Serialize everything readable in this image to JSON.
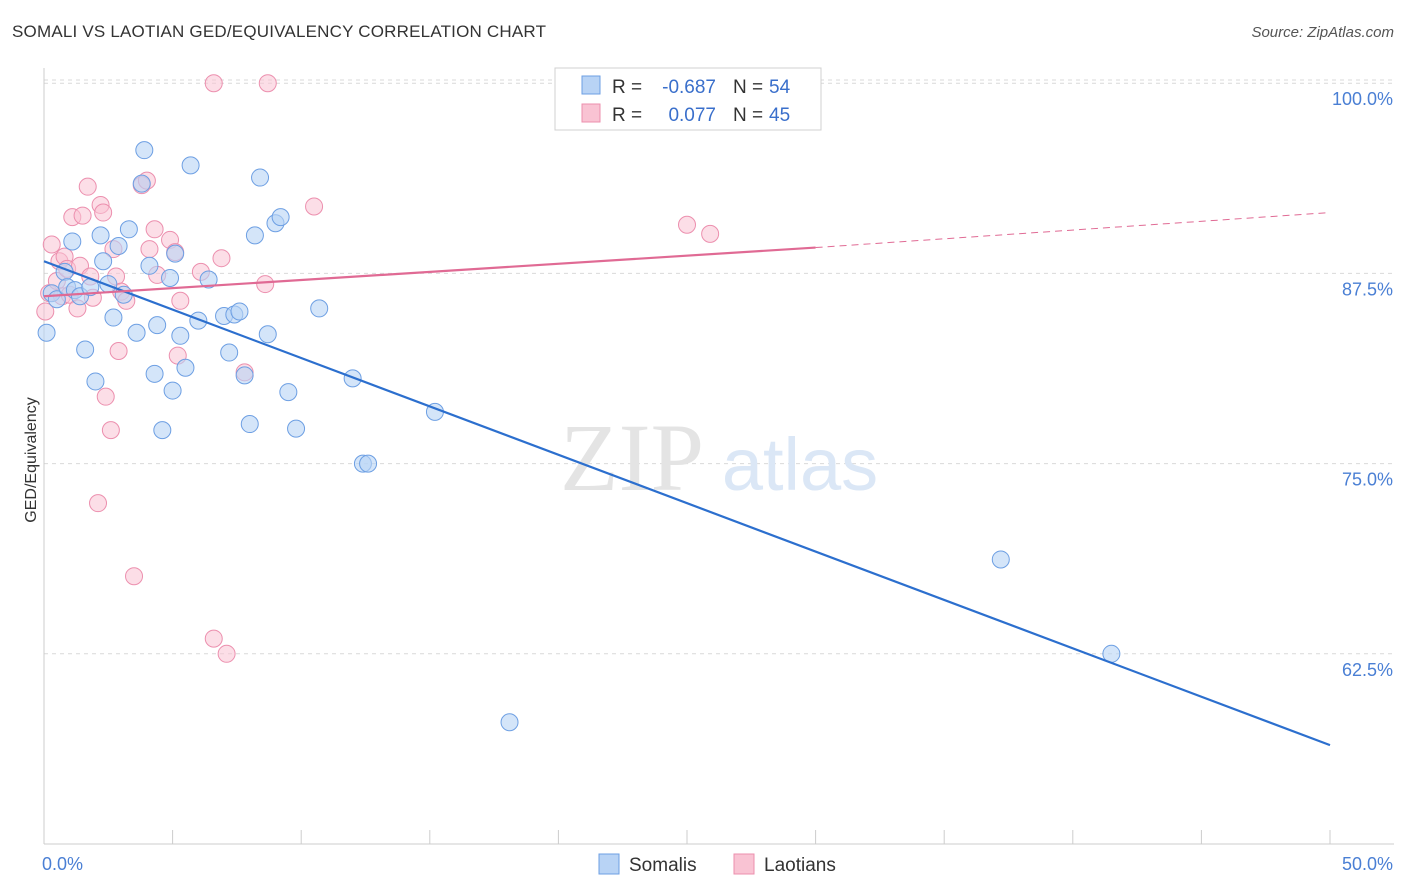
{
  "title": "SOMALI VS LAOTIAN GED/EQUIVALENCY CORRELATION CHART",
  "source": "Source: ZipAtlas.com",
  "watermark": {
    "zip": "ZIP",
    "atlas": "atlas"
  },
  "legend_top": [
    {
      "r_label": "R =",
      "r_value": "-0.687",
      "n_label": "N =",
      "n_value": "54"
    },
    {
      "r_label": "R =",
      "r_value": "0.077",
      "n_label": "N =",
      "n_value": "45"
    }
  ],
  "colors": {
    "somali_fill": "#b8d3f5",
    "somali_stroke": "#6d9fe3",
    "somali_line": "#2c6fce",
    "laotian_fill": "#f9c3d3",
    "laotian_stroke": "#ec8fae",
    "laotian_line": "#e06a94",
    "grid": "#d9d9d9",
    "tick_text": "#4a7fd4"
  },
  "chart_data": {
    "type": "scatter",
    "xlabel": "",
    "ylabel": "GED/Equivalency",
    "xlim": [
      0,
      50
    ],
    "ylim": [
      50,
      101
    ],
    "x_tick_labels": [
      {
        "value": 0,
        "label": "0.0%"
      },
      {
        "value": 50,
        "label": "50.0%"
      }
    ],
    "y_tick_labels": [
      {
        "value": 100,
        "label": "100.0%"
      },
      {
        "value": 87.5,
        "label": "87.5%"
      },
      {
        "value": 75,
        "label": "75.0%"
      },
      {
        "value": 62.5,
        "label": "62.5%"
      }
    ],
    "grid": true,
    "legend_position": "bottom-center",
    "series": [
      {
        "name": "Somalis",
        "r": -0.687,
        "n": 54,
        "trend": {
          "x": [
            0,
            50
          ],
          "y": [
            88.3,
            56.5
          ]
        },
        "points": [
          [
            0.1,
            83.6
          ],
          [
            0.3,
            86.2
          ],
          [
            0.5,
            85.8
          ],
          [
            0.8,
            87.6
          ],
          [
            0.9,
            86.6
          ],
          [
            1.1,
            89.6
          ],
          [
            1.2,
            86.4
          ],
          [
            1.4,
            86.0
          ],
          [
            1.6,
            82.5
          ],
          [
            1.8,
            86.6
          ],
          [
            2.0,
            80.4
          ],
          [
            2.2,
            90.0
          ],
          [
            2.3,
            88.3
          ],
          [
            2.5,
            86.8
          ],
          [
            2.7,
            84.6
          ],
          [
            2.9,
            89.3
          ],
          [
            3.1,
            86.1
          ],
          [
            3.3,
            90.4
          ],
          [
            3.6,
            83.6
          ],
          [
            3.8,
            93.4
          ],
          [
            3.9,
            95.6
          ],
          [
            4.1,
            88.0
          ],
          [
            4.3,
            80.9
          ],
          [
            4.4,
            84.1
          ],
          [
            4.6,
            77.2
          ],
          [
            4.9,
            87.2
          ],
          [
            5.0,
            79.8
          ],
          [
            5.1,
            88.8
          ],
          [
            5.3,
            83.4
          ],
          [
            5.5,
            81.3
          ],
          [
            5.7,
            94.6
          ],
          [
            6.0,
            84.4
          ],
          [
            6.4,
            87.1
          ],
          [
            7.0,
            84.7
          ],
          [
            7.2,
            82.3
          ],
          [
            7.4,
            84.8
          ],
          [
            7.6,
            85.0
          ],
          [
            7.8,
            80.8
          ],
          [
            8.0,
            77.6
          ],
          [
            8.2,
            90.0
          ],
          [
            8.4,
            93.8
          ],
          [
            8.7,
            83.5
          ],
          [
            9.0,
            90.8
          ],
          [
            9.2,
            91.2
          ],
          [
            9.5,
            79.7
          ],
          [
            9.8,
            77.3
          ],
          [
            10.7,
            85.2
          ],
          [
            12.0,
            80.6
          ],
          [
            12.4,
            75.0
          ],
          [
            12.6,
            75.0
          ],
          [
            15.2,
            78.4
          ],
          [
            18.1,
            58.0
          ],
          [
            37.2,
            68.7
          ],
          [
            41.5,
            62.5
          ]
        ]
      },
      {
        "name": "Laotians",
        "r": 0.077,
        "n": 45,
        "trend": {
          "x": [
            0,
            30
          ],
          "y": [
            86.0,
            89.2
          ]
        },
        "trend_extension": {
          "x": [
            30,
            50
          ],
          "y": [
            89.2,
            91.5
          ]
        },
        "points": [
          [
            0.05,
            85.0
          ],
          [
            0.2,
            86.2
          ],
          [
            0.3,
            89.4
          ],
          [
            0.5,
            87.0
          ],
          [
            0.6,
            88.3
          ],
          [
            0.7,
            86.0
          ],
          [
            0.8,
            88.6
          ],
          [
            0.9,
            87.8
          ],
          [
            1.0,
            86.1
          ],
          [
            1.1,
            91.2
          ],
          [
            1.3,
            85.2
          ],
          [
            1.4,
            88.0
          ],
          [
            1.5,
            91.3
          ],
          [
            1.7,
            93.2
          ],
          [
            1.8,
            87.3
          ],
          [
            1.9,
            85.9
          ],
          [
            2.1,
            72.4
          ],
          [
            2.2,
            92.0
          ],
          [
            2.3,
            91.5
          ],
          [
            2.4,
            79.4
          ],
          [
            2.6,
            77.2
          ],
          [
            2.7,
            89.1
          ],
          [
            2.8,
            87.3
          ],
          [
            2.9,
            82.4
          ],
          [
            3.0,
            86.3
          ],
          [
            3.2,
            85.7
          ],
          [
            3.5,
            67.6
          ],
          [
            3.8,
            93.3
          ],
          [
            4.0,
            93.6
          ],
          [
            4.1,
            89.1
          ],
          [
            4.3,
            90.4
          ],
          [
            4.4,
            87.4
          ],
          [
            4.9,
            89.7
          ],
          [
            5.1,
            88.9
          ],
          [
            5.2,
            82.1
          ],
          [
            5.3,
            85.7
          ],
          [
            6.1,
            87.6
          ],
          [
            6.6,
            63.5
          ],
          [
            6.6,
            100.0
          ],
          [
            6.9,
            88.5
          ],
          [
            7.1,
            62.5
          ],
          [
            7.8,
            81.0
          ],
          [
            8.6,
            86.8
          ],
          [
            8.7,
            100.0
          ],
          [
            10.5,
            91.9
          ]
        ],
        "extra_points": [
          [
            25.0,
            90.7
          ],
          [
            25.9,
            90.1
          ]
        ]
      }
    ]
  }
}
